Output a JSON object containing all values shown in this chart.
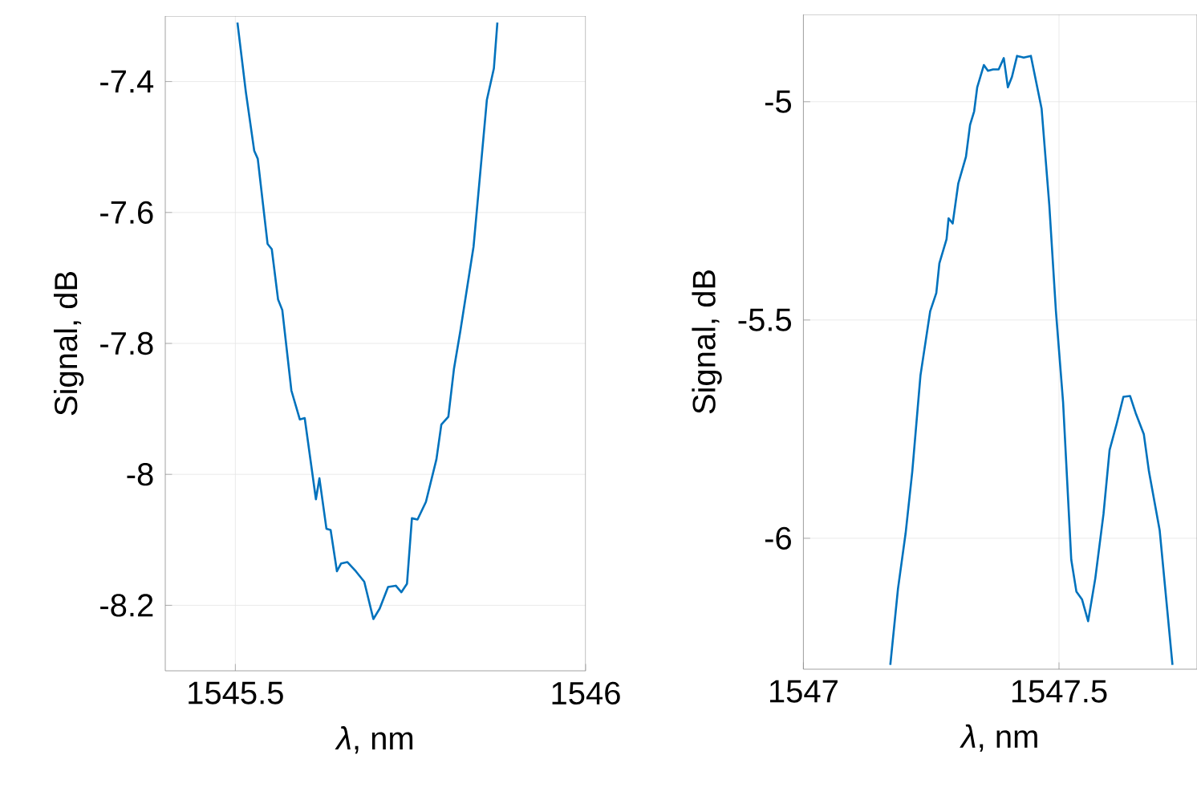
{
  "chart_data": [
    {
      "type": "line",
      "xlabel": "*λ*, nm",
      "ylabel": "Signal, dB",
      "xlim": [
        1545.4,
        1546
      ],
      "ylim": [
        -8.3,
        -7.3
      ],
      "xticks": [
        1545.5,
        1546
      ],
      "yticks": [
        -8.2,
        -8,
        -7.8,
        -7.6,
        -7.4
      ],
      "grid": true,
      "x": [
        1545.503,
        1545.515,
        1545.527,
        1545.532,
        1545.546,
        1545.552,
        1545.561,
        1545.567,
        1545.58,
        1545.592,
        1545.599,
        1545.615,
        1545.62,
        1545.63,
        1545.636,
        1545.645,
        1545.651,
        1545.66,
        1545.672,
        1545.684,
        1545.697,
        1545.706,
        1545.718,
        1545.729,
        1545.737,
        1545.745,
        1545.752,
        1545.76,
        1545.772,
        1545.787,
        1545.794,
        1545.804,
        1545.812,
        1545.821,
        1545.84,
        1545.859,
        1545.869,
        1545.874
      ],
      "series": [
        {
          "color": "#0072bd",
          "values": [
            -7.31,
            -7.416,
            -7.506,
            -7.518,
            -7.648,
            -7.656,
            -7.733,
            -7.749,
            -7.872,
            -7.916,
            -7.914,
            -8.038,
            -8.006,
            -8.083,
            -8.085,
            -8.148,
            -8.136,
            -8.134,
            -8.148,
            -8.164,
            -8.221,
            -8.205,
            -8.172,
            -8.17,
            -8.18,
            -8.167,
            -8.067,
            -8.069,
            -8.042,
            -7.977,
            -7.924,
            -7.912,
            -7.839,
            -7.782,
            -7.652,
            -7.428,
            -7.38,
            -7.31
          ]
        }
      ]
    },
    {
      "type": "line",
      "xlabel": "*λ*, nm",
      "ylabel": "Signal, dB",
      "xlim": [
        1547,
        1547.77
      ],
      "ylim": [
        -6.3,
        -4.8
      ],
      "xticks": [
        1547,
        1547.5
      ],
      "yticks": [
        -6,
        -5.5,
        -5
      ],
      "grid": true,
      "x": [
        1547.17,
        1547.185,
        1547.2,
        1547.213,
        1547.229,
        1547.248,
        1547.26,
        1547.266,
        1547.28,
        1547.284,
        1547.292,
        1547.303,
        1547.318,
        1547.326,
        1547.334,
        1547.34,
        1547.353,
        1547.361,
        1547.371,
        1547.382,
        1547.392,
        1547.4,
        1547.408,
        1547.418,
        1547.431,
        1547.445,
        1547.466,
        1547.481,
        1547.494,
        1547.508,
        1547.524,
        1547.534,
        1547.545,
        1547.557,
        1547.571,
        1547.587,
        1547.599,
        1547.613,
        1547.626,
        1547.639,
        1547.65,
        1547.666,
        1547.676,
        1547.697,
        1547.722
      ],
      "series": [
        {
          "color": "#0072bd",
          "values": [
            -6.29,
            -6.116,
            -5.988,
            -5.847,
            -5.627,
            -5.48,
            -5.438,
            -5.37,
            -5.315,
            -5.267,
            -5.279,
            -5.187,
            -5.126,
            -5.053,
            -5.022,
            -4.967,
            -4.916,
            -4.929,
            -4.926,
            -4.926,
            -4.9,
            -4.967,
            -4.943,
            -4.895,
            -4.899,
            -4.895,
            -5.016,
            -5.236,
            -5.48,
            -5.688,
            -6.049,
            -6.122,
            -6.14,
            -6.19,
            -6.092,
            -5.945,
            -5.798,
            -5.737,
            -5.676,
            -5.674,
            -5.713,
            -5.762,
            -5.847,
            -5.982,
            -6.29
          ]
        }
      ]
    }
  ]
}
